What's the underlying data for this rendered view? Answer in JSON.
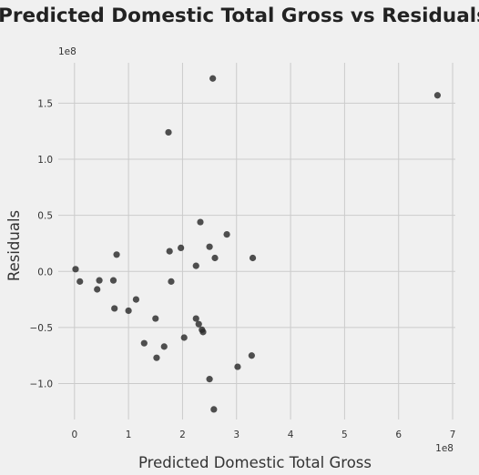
{
  "chart_data": {
    "type": "scatter",
    "title": "Predicted Domestic Total Gross vs Residuals",
    "xlabel": "Predicted Domestic Total Gross",
    "ylabel": "Residuals",
    "x_offset_label": "1e8",
    "y_offset_label": "1e8",
    "xlim": [
      -0.3,
      7.05
    ],
    "ylim": [
      -1.32,
      1.86
    ],
    "x_ticks": [
      0,
      1,
      2,
      3,
      4,
      5,
      6,
      7
    ],
    "x_tick_labels": [
      "0",
      "1",
      "2",
      "3",
      "4",
      "5",
      "6",
      "7"
    ],
    "y_ticks": [
      -1.0,
      -0.5,
      0.0,
      0.5,
      1.0,
      1.5
    ],
    "y_tick_labels": [
      "−1.0",
      "−0.5",
      "0.0",
      "0.5",
      "1.0",
      "1.5"
    ],
    "grid": true,
    "marker_color": "#2a2a2a",
    "points": [
      {
        "x": 0.02,
        "y": 0.02
      },
      {
        "x": 0.1,
        "y": -0.09
      },
      {
        "x": 0.42,
        "y": -0.16
      },
      {
        "x": 0.46,
        "y": -0.08
      },
      {
        "x": 0.72,
        "y": -0.08
      },
      {
        "x": 0.74,
        "y": -0.33
      },
      {
        "x": 0.78,
        "y": 0.15
      },
      {
        "x": 1.0,
        "y": -0.35
      },
      {
        "x": 1.14,
        "y": -0.25
      },
      {
        "x": 1.29,
        "y": -0.64
      },
      {
        "x": 1.5,
        "y": -0.42
      },
      {
        "x": 1.52,
        "y": -0.77
      },
      {
        "x": 1.66,
        "y": -0.67
      },
      {
        "x": 1.74,
        "y": 1.24
      },
      {
        "x": 1.76,
        "y": 0.18
      },
      {
        "x": 1.79,
        "y": -0.09
      },
      {
        "x": 1.97,
        "y": 0.21
      },
      {
        "x": 2.03,
        "y": -0.59
      },
      {
        "x": 2.25,
        "y": 0.05
      },
      {
        "x": 2.25,
        "y": -0.42
      },
      {
        "x": 2.3,
        "y": -0.47
      },
      {
        "x": 2.33,
        "y": 0.44
      },
      {
        "x": 2.36,
        "y": -0.52
      },
      {
        "x": 2.38,
        "y": -0.54
      },
      {
        "x": 2.5,
        "y": 0.22
      },
      {
        "x": 2.5,
        "y": -0.96
      },
      {
        "x": 2.56,
        "y": 1.72
      },
      {
        "x": 2.58,
        "y": -1.23
      },
      {
        "x": 2.6,
        "y": 0.12
      },
      {
        "x": 2.82,
        "y": 0.33
      },
      {
        "x": 3.02,
        "y": -0.85
      },
      {
        "x": 3.28,
        "y": -0.75
      },
      {
        "x": 3.3,
        "y": 0.12
      },
      {
        "x": 6.72,
        "y": 1.57
      }
    ]
  }
}
